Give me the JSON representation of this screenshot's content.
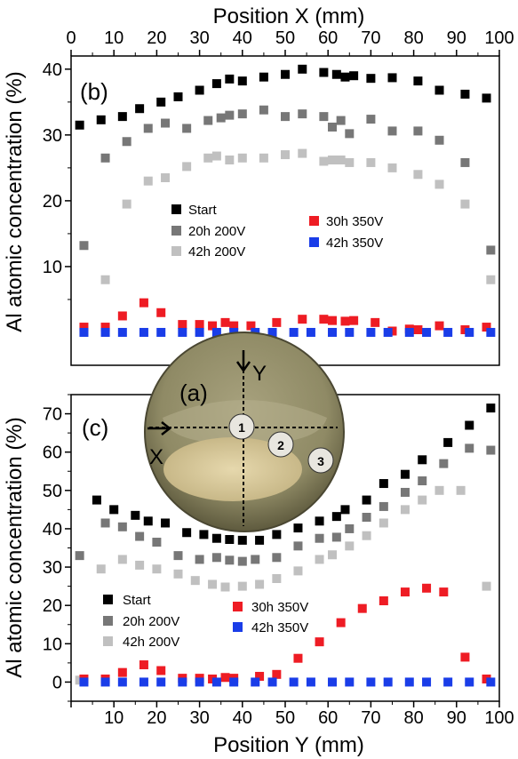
{
  "chart_data": [
    {
      "type": "scatter",
      "panel_label": "(b)",
      "xlabel": "Position X (mm)",
      "ylabel": "Al atomic concentration (%)",
      "xlim": [
        0,
        100
      ],
      "ylim": [
        -5,
        42
      ],
      "xticks": [
        0,
        10,
        20,
        30,
        40,
        50,
        60,
        70,
        80,
        90,
        100
      ],
      "yticks": [
        10,
        20,
        30,
        40
      ],
      "series": [
        {
          "name": "Start",
          "color": "#000000",
          "x": [
            2,
            7,
            12,
            16,
            21,
            25,
            30,
            34,
            37,
            40,
            45,
            50,
            54,
            59,
            62,
            64,
            66,
            70,
            75,
            81,
            86,
            92,
            97
          ],
          "y": [
            31.5,
            32.3,
            32.8,
            34.0,
            35.0,
            35.8,
            36.8,
            37.8,
            38.5,
            38.2,
            38.8,
            39.2,
            40.0,
            39.5,
            39.2,
            38.8,
            39.0,
            38.6,
            38.7,
            38.2,
            36.8,
            36.2,
            35.6
          ]
        },
        {
          "name": "20h 200V",
          "color": "#777777",
          "x": [
            3,
            8,
            13,
            18,
            22,
            27,
            32,
            35,
            37,
            40,
            45,
            50,
            54,
            59,
            61,
            63,
            65,
            70,
            75,
            81,
            86,
            92,
            98
          ],
          "y": [
            13.2,
            26.5,
            29.0,
            31.0,
            31.8,
            31.0,
            32.2,
            32.6,
            33.0,
            33.2,
            33.8,
            32.8,
            33.2,
            32.8,
            31.2,
            32.2,
            30.2,
            32.4,
            30.6,
            30.6,
            29.2,
            25.8,
            12.5
          ]
        },
        {
          "name": "42h 200V",
          "color": "#c0c0c0",
          "x": [
            3,
            8,
            13,
            18,
            22,
            27,
            32,
            34,
            37,
            40,
            45,
            50,
            54,
            59,
            61,
            63,
            65,
            70,
            75,
            81,
            86,
            92,
            98
          ],
          "y": [
            0.2,
            8.0,
            19.5,
            23.0,
            23.5,
            25.2,
            26.5,
            26.8,
            26.2,
            26.5,
            26.5,
            27.0,
            27.2,
            26.0,
            26.2,
            26.2,
            25.8,
            25.8,
            25.0,
            24.0,
            22.5,
            19.5,
            8.0
          ]
        },
        {
          "name": "30h 350V",
          "color": "#ee1c24",
          "x": [
            3,
            8,
            12,
            17,
            21,
            26,
            30,
            33,
            36,
            38,
            42,
            48,
            54,
            59,
            61,
            64,
            66,
            71,
            75,
            79,
            81,
            86,
            92,
            97
          ],
          "y": [
            0.8,
            0.8,
            2.5,
            4.5,
            3.0,
            1.2,
            1.2,
            1.0,
            1.5,
            1.0,
            1.0,
            1.5,
            2.0,
            2.0,
            1.8,
            1.7,
            1.8,
            1.5,
            0.2,
            0.5,
            0.4,
            1.0,
            0.4,
            0.8
          ]
        },
        {
          "name": "42h 350V",
          "color": "#1a3de8",
          "x": [
            3,
            8,
            12,
            17,
            21,
            26,
            30,
            34,
            38,
            43,
            47,
            52,
            56,
            61,
            65,
            70,
            74,
            79,
            83,
            88,
            93,
            98
          ],
          "y": [
            0,
            0,
            0,
            0,
            0,
            0,
            0,
            0,
            0,
            0,
            0,
            0,
            0,
            0,
            0,
            0,
            0,
            0,
            0,
            0,
            0,
            0
          ]
        }
      ]
    },
    {
      "type": "scatter",
      "panel_label": "(c)",
      "xlabel": "Position Y (mm)",
      "ylabel": "Al atomic concentration (%)",
      "xlim": [
        0,
        100
      ],
      "ylim": [
        -5,
        75
      ],
      "xticks": [
        10,
        20,
        30,
        40,
        50,
        60,
        70,
        80,
        90,
        100
      ],
      "yticks": [
        0,
        10,
        20,
        30,
        40,
        50,
        60,
        70
      ],
      "series": [
        {
          "name": "Start",
          "color": "#000000",
          "x": [
            6,
            10,
            15,
            18,
            22,
            27,
            31,
            34,
            37,
            40,
            44,
            48,
            53,
            58,
            62,
            64,
            69,
            73,
            78,
            82,
            88,
            93,
            98
          ],
          "y": [
            47.5,
            45.0,
            43.5,
            42.0,
            41.5,
            39.0,
            38.5,
            37.5,
            37.2,
            37.0,
            37.0,
            38.5,
            40.2,
            42.0,
            43.2,
            45.0,
            47.5,
            51.8,
            54.2,
            58.0,
            62.5,
            67.0,
            71.5
          ]
        },
        {
          "name": "20h 200V",
          "color": "#777777",
          "x": [
            2,
            8,
            12,
            16,
            20,
            25,
            30,
            34,
            37,
            40,
            43,
            48,
            53,
            58,
            62,
            65,
            69,
            73,
            78,
            82,
            87,
            93,
            98
          ],
          "y": [
            33.0,
            41.5,
            40.5,
            38.0,
            36.5,
            33.0,
            32.0,
            32.5,
            31.8,
            31.5,
            32.0,
            32.5,
            35.5,
            37.5,
            37.8,
            40.0,
            43.0,
            45.8,
            49.5,
            52.5,
            57.0,
            61.0,
            60.5
          ]
        },
        {
          "name": "42h 200V",
          "color": "#c0c0c0",
          "x": [
            2,
            7,
            12,
            16,
            20,
            25,
            29,
            33,
            36,
            40,
            44,
            48,
            53,
            58,
            61,
            65,
            69,
            73,
            78,
            82,
            86,
            91,
            97
          ],
          "y": [
            0.5,
            29.5,
            32.0,
            30.5,
            29.5,
            28.2,
            26.5,
            25.5,
            24.8,
            25.0,
            25.5,
            27.0,
            29.0,
            32.0,
            33.2,
            35.5,
            38.2,
            41.5,
            45.0,
            47.5,
            50.0,
            50.0,
            25.0
          ]
        },
        {
          "name": "30h 350V",
          "color": "#ee1c24",
          "x": [
            3,
            8,
            12,
            17,
            21,
            26,
            30,
            33,
            36,
            38,
            44,
            48,
            53,
            58,
            63,
            68,
            73,
            78,
            83,
            87,
            92,
            97
          ],
          "y": [
            0.8,
            0.8,
            2.5,
            4.5,
            3.0,
            1.0,
            1.0,
            0.8,
            1.2,
            1.0,
            1.5,
            2.0,
            6.2,
            10.5,
            15.5,
            19.2,
            21.2,
            23.5,
            24.5,
            23.5,
            6.5,
            0.8
          ]
        },
        {
          "name": "42h 350V",
          "color": "#1a3de8",
          "x": [
            3,
            8,
            12,
            17,
            21,
            26,
            30,
            34,
            38,
            43,
            47,
            52,
            56,
            61,
            65,
            70,
            74,
            79,
            83,
            88,
            93,
            98
          ],
          "y": [
            0,
            0,
            0,
            0,
            0,
            0,
            0,
            0,
            0,
            0,
            0,
            0,
            0,
            0,
            0,
            0,
            0,
            0,
            0,
            0,
            0,
            0
          ]
        }
      ]
    }
  ],
  "inset": {
    "panel_label": "(a)",
    "axis_x_label": "X",
    "axis_y_label": "Y",
    "markers": [
      "1",
      "2",
      "3"
    ],
    "plate_color": "#8f8a65",
    "core_color": "#d8c89c"
  }
}
